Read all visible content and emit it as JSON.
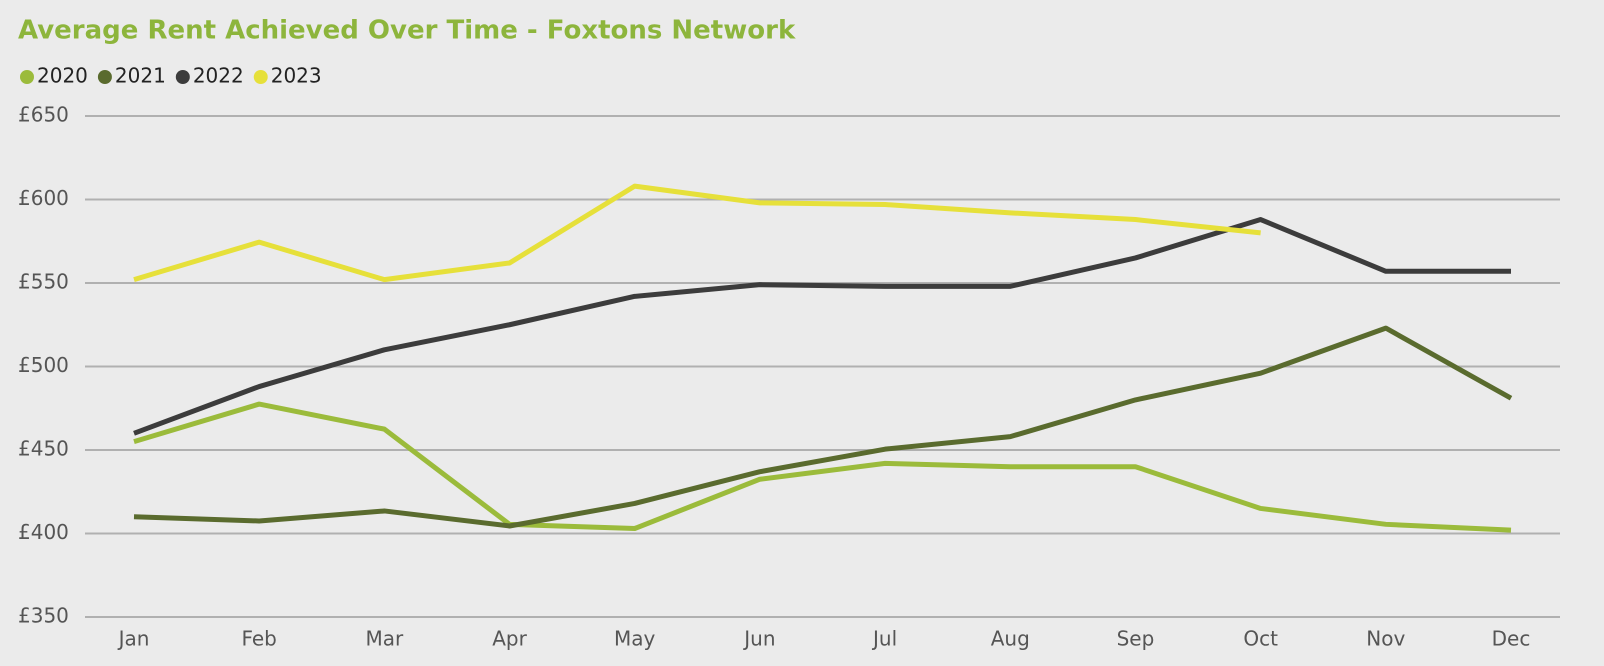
{
  "chart_data": {
    "type": "line",
    "title": "Average Rent Achieved Over Time - Foxtons Network",
    "categories": [
      "Jan",
      "Feb",
      "Mar",
      "Apr",
      "May",
      "Jun",
      "Jul",
      "Aug",
      "Sep",
      "Oct",
      "Nov",
      "Dec"
    ],
    "series": [
      {
        "name": "2020",
        "color": "#9bbb3b",
        "values": [
          455,
          477.5,
          462.5,
          405.5,
          403,
          432.5,
          442,
          440,
          440,
          415,
          405.5,
          402
        ]
      },
      {
        "name": "2021",
        "color": "#5a6b2e",
        "values": [
          410,
          407.5,
          413.5,
          404.5,
          418,
          437,
          450.5,
          458,
          480,
          496,
          523,
          481
        ]
      },
      {
        "name": "2022",
        "color": "#3c3c3c",
        "values": [
          460,
          488,
          510,
          525,
          542,
          549,
          548,
          548,
          565,
          588,
          557,
          557
        ]
      },
      {
        "name": "2023",
        "color": "#e6e03a",
        "values": [
          552,
          574.5,
          552,
          562,
          608,
          598,
          597,
          592,
          588,
          580,
          null,
          null
        ]
      }
    ],
    "ylim": [
      350,
      650
    ],
    "yticks": [
      {
        "value": 350,
        "label": "£350"
      },
      {
        "value": 400,
        "label": "£400"
      },
      {
        "value": 450,
        "label": "£450"
      },
      {
        "value": 500,
        "label": "£500"
      },
      {
        "value": 550,
        "label": "£550"
      },
      {
        "value": 600,
        "label": "£600"
      },
      {
        "value": 650,
        "label": "£650"
      }
    ],
    "grid": true,
    "legend": "top-left"
  }
}
